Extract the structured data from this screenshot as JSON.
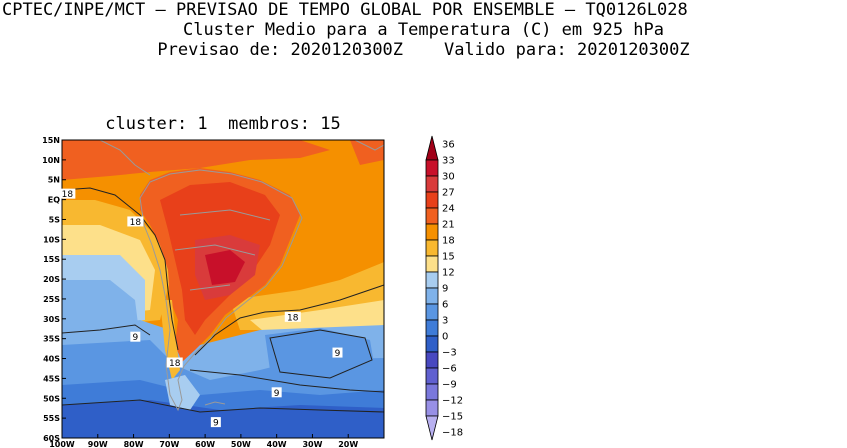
{
  "header": {
    "line1": "CPTEC/INPE/MCT – PREVISAO DE TEMPO GLOBAL POR ENSEMBLE – TQ0126L028",
    "line2": "Cluster Medio para a Temperatura (C) em 925 hPa",
    "line3": "Previsao de: 2020120300Z    Valido para: 2020120300Z"
  },
  "map": {
    "subtitle": "cluster: 1  membros: 15",
    "lat_labels": [
      "15N",
      "10N",
      "5N",
      "EQ",
      "5S",
      "10S",
      "15S",
      "20S",
      "25S",
      "30S",
      "35S",
      "40S",
      "45S",
      "50S",
      "55S",
      "60S"
    ],
    "lon_labels": [
      "100W",
      "90W",
      "80W",
      "70W",
      "60W",
      "50W",
      "40W",
      "30W",
      "20W"
    ],
    "contour_labels": [
      {
        "text": "18",
        "lon": -98.5,
        "lat": 1.5
      },
      {
        "text": "18",
        "lon": -79.5,
        "lat": -5.5
      },
      {
        "text": "18",
        "lon": -35.5,
        "lat": -29.5
      },
      {
        "text": "18",
        "lon": -68.5,
        "lat": -41.0
      },
      {
        "text": "9",
        "lon": -79.5,
        "lat": -34.5
      },
      {
        "text": "9",
        "lon": -23.0,
        "lat": -38.5
      },
      {
        "text": "9",
        "lon": -40.0,
        "lat": -48.5
      },
      {
        "text": "9",
        "lon": -57.0,
        "lat": -56.0
      }
    ]
  },
  "colorbar": {
    "labels": [
      "36",
      "33",
      "30",
      "27",
      "24",
      "21",
      "18",
      "15",
      "12",
      "9",
      "6",
      "3",
      "0",
      "−3",
      "−6",
      "−9",
      "−12",
      "−15",
      "−18"
    ],
    "colors": [
      "#a00018",
      "#c8102a",
      "#d93b3b",
      "#e8401a",
      "#f06020",
      "#f59000",
      "#f8b830",
      "#fde08a",
      "#a8cdf0",
      "#7fb2ea",
      "#5a96e2",
      "#3f7cd8",
      "#2f5fc8",
      "#4848c0",
      "#6060d0",
      "#7a78dc",
      "#9890e6",
      "#b8b0f0"
    ]
  }
}
